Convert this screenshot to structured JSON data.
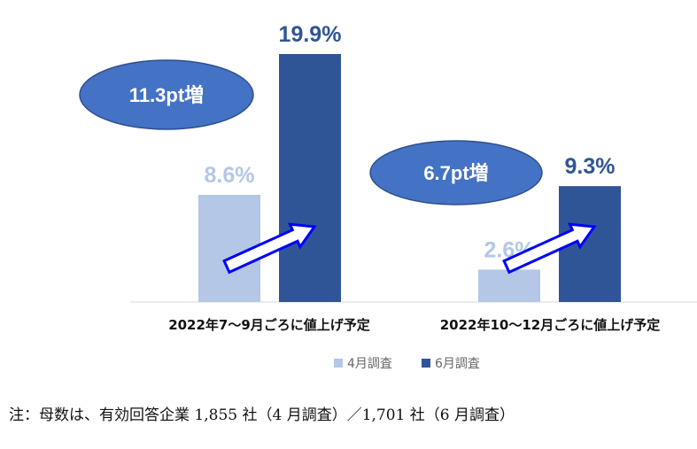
{
  "chart_data": {
    "type": "bar",
    "categories": [
      "2022年7～9月ごろに値上げ予定",
      "2022年10～12月ごろに値上げ予定"
    ],
    "series": [
      {
        "name": "4月調査",
        "values": [
          8.6,
          2.6
        ],
        "labels": [
          "8.6%",
          "2.6%"
        ],
        "color": "#b4c7e7"
      },
      {
        "name": "6月調査",
        "values": [
          19.9,
          9.3
        ],
        "labels": [
          "19.9%",
          "9.3%"
        ],
        "color": "#2f5597"
      }
    ],
    "ylim": [
      0,
      20
    ],
    "grid": false,
    "legend": "bottom",
    "annotations": [
      "11.3pt増",
      "6.7pt増"
    ]
  },
  "note": "注：母数は、有効回答企業 1,855 社（4 月調査）／1,701 社（6 月調査）",
  "colors": {
    "bubble_fill": "#4472c4",
    "bubble_stroke": "#2f4f8f",
    "arrow_stroke": "#0000ff",
    "baseline": "#d9d9d9"
  }
}
